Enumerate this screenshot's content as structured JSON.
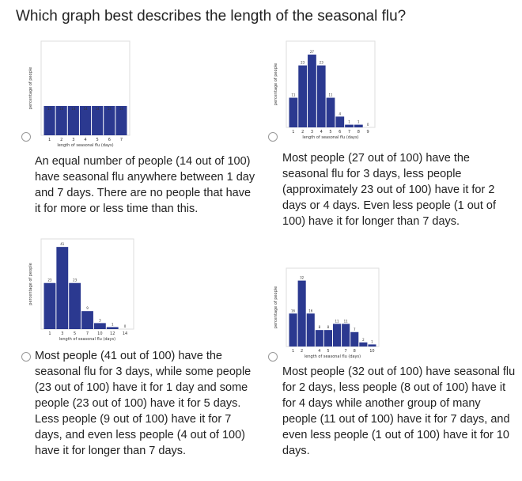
{
  "question": "Which graph best describes the length of the seasonal flu?",
  "options": [
    {
      "chart": {
        "type": "bar",
        "xlabel": "length of seasonal flu (days)",
        "ylabel": "percentage of people",
        "categories": [
          "1",
          "2",
          "3",
          "4",
          "5",
          "6",
          "7"
        ],
        "values": [
          14,
          14,
          14,
          14,
          14,
          14,
          14
        ],
        "color": "#2b3990",
        "ylim": [
          0,
          45
        ]
      },
      "text": "An equal number of people (14 out of 100) have seasonal flu anywhere between 1 day and 7 days. There are no people that have it for more or less time than this."
    },
    {
      "chart": {
        "type": "bar",
        "xlabel": "length of seasonal flu (days)",
        "ylabel": "percentage of people",
        "categories": [
          "1",
          "2",
          "3",
          "4",
          "5",
          "6",
          "7",
          "8",
          "9"
        ],
        "values": [
          11,
          23,
          27,
          23,
          11,
          4,
          1,
          1,
          0
        ],
        "color": "#2b3990",
        "ylim": [
          0,
          32
        ]
      },
      "text": "Most people (27 out of 100) have the seasonal flu for 3 days, less people (approximately 23 out of 100) have it for 2 days or 4 days. Even less people (1 out of 100) have it for longer than 7 days."
    },
    {
      "chart": {
        "type": "bar",
        "xlabel": "length of seasonal flu (days)",
        "ylabel": "percentage of people",
        "categories": [
          "1",
          "3",
          "5",
          "7",
          "10",
          "12",
          "14"
        ],
        "values": [
          23,
          41,
          23,
          9,
          3,
          1,
          0
        ],
        "color": "#2b3990",
        "ylim": [
          0,
          45
        ]
      },
      "text": "Most people (41 out of 100) have the seasonal flu for 3 days, while some people (23 out of 100) have it for 1 day and some people (23 out of 100) have it for 5 days. Less people (9 out of 100) have it for 7 days, and even less people (4 out of 100) have it for longer than 7 days."
    },
    {
      "chart": {
        "type": "bar",
        "xlabel": "length of seasonal flu (days)",
        "ylabel": "percentage of people",
        "categories": [
          "1",
          "2",
          null,
          "4",
          "5",
          null,
          "7",
          "8",
          null,
          "10"
        ],
        "values": [
          16,
          32,
          16,
          8,
          8,
          11,
          11,
          7,
          2,
          1
        ],
        "color": "#2b3990",
        "ylim": [
          0,
          38
        ]
      },
      "text": "Most people (32 out of 100) have seasonal flu for 2 days, less people (8 out of 100) have it for 4 days while another group of many people (11 out of 100) have it for 7 days, and even less people (1 out of 100) have it for 10 days."
    }
  ]
}
